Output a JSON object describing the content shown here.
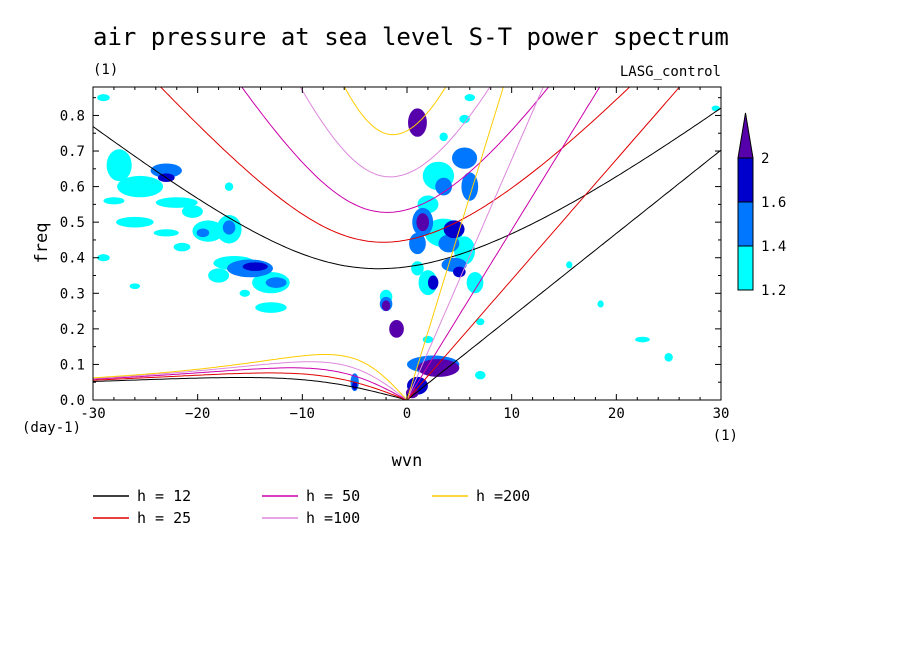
{
  "title": "air pressure at sea level S-T power spectrum",
  "subtitle_unit": "(1)",
  "experiment": "LASG_control",
  "chart_data": {
    "type": "heatmap",
    "xlabel": "wvn",
    "ylabel": "freq",
    "x_unit": "(1)",
    "y_unit": "(day-1)",
    "xlim": [
      -30,
      30
    ],
    "ylim": [
      0,
      0.88
    ],
    "x_ticks": [
      -30,
      -20,
      -10,
      0,
      10,
      20,
      30
    ],
    "x_tick_labels": [
      "-30",
      "−20",
      "−10",
      "0",
      "10",
      "20",
      "30"
    ],
    "y_ticks": [
      0,
      0.1,
      0.2,
      0.3,
      0.4,
      0.5,
      0.6,
      0.7,
      0.8
    ],
    "y_tick_labels": [
      "0.0",
      "0.1",
      "0.2",
      "0.3",
      "0.4",
      "0.5",
      "0.6",
      "0.7",
      "0.8"
    ],
    "colorbar": {
      "levels": [
        1.2,
        1.4,
        1.6,
        2
      ],
      "level_labels": [
        "1.2",
        "1.4",
        "1.6",
        "2"
      ],
      "colors": [
        "#00ffff",
        "#0077ff",
        "#0000cc",
        "#5500aa"
      ]
    },
    "dispersion_curves": [
      {
        "name": "h = 12",
        "h": 12,
        "color": "#000000"
      },
      {
        "name": "h = 25",
        "h": 25,
        "color": "#e00000"
      },
      {
        "name": "h = 50",
        "h": 50,
        "color": "#cc00aa"
      },
      {
        "name": "h =100",
        "h": 100,
        "color": "#dd88dd"
      },
      {
        "name": "h =200",
        "h": 200,
        "color": "#ffcc00"
      }
    ],
    "blobs": [
      {
        "x": -29,
        "y": 0.85,
        "rx": 0.6,
        "ry": 0.01,
        "level": 0
      },
      {
        "x": -27.5,
        "y": 0.66,
        "rx": 1.2,
        "ry": 0.045,
        "level": 0
      },
      {
        "x": -25.5,
        "y": 0.6,
        "rx": 2.2,
        "ry": 0.03,
        "level": 0
      },
      {
        "x": -23,
        "y": 0.645,
        "rx": 1.5,
        "ry": 0.02,
        "level": 1
      },
      {
        "x": -23,
        "y": 0.625,
        "rx": 0.8,
        "ry": 0.012,
        "level": 2
      },
      {
        "x": -22,
        "y": 0.555,
        "rx": 2.0,
        "ry": 0.015,
        "level": 0
      },
      {
        "x": -28,
        "y": 0.56,
        "rx": 1.0,
        "ry": 0.01,
        "level": 0
      },
      {
        "x": -26,
        "y": 0.5,
        "rx": 1.8,
        "ry": 0.015,
        "level": 0
      },
      {
        "x": -23,
        "y": 0.47,
        "rx": 1.2,
        "ry": 0.01,
        "level": 0
      },
      {
        "x": -20.5,
        "y": 0.53,
        "rx": 1.0,
        "ry": 0.018,
        "level": 0
      },
      {
        "x": -19,
        "y": 0.475,
        "rx": 1.5,
        "ry": 0.03,
        "level": 0
      },
      {
        "x": -19.5,
        "y": 0.47,
        "rx": 0.6,
        "ry": 0.012,
        "level": 1
      },
      {
        "x": -17,
        "y": 0.48,
        "rx": 1.2,
        "ry": 0.04,
        "level": 0
      },
      {
        "x": -17,
        "y": 0.485,
        "rx": 0.6,
        "ry": 0.02,
        "level": 1
      },
      {
        "x": -21.5,
        "y": 0.43,
        "rx": 0.8,
        "ry": 0.012,
        "level": 0
      },
      {
        "x": -29,
        "y": 0.4,
        "rx": 0.6,
        "ry": 0.01,
        "level": 0
      },
      {
        "x": -16.5,
        "y": 0.385,
        "rx": 2.0,
        "ry": 0.02,
        "level": 0
      },
      {
        "x": -15,
        "y": 0.37,
        "rx": 2.2,
        "ry": 0.025,
        "level": 1
      },
      {
        "x": -14.5,
        "y": 0.375,
        "rx": 1.2,
        "ry": 0.012,
        "level": 2
      },
      {
        "x": -13,
        "y": 0.33,
        "rx": 1.8,
        "ry": 0.03,
        "level": 0
      },
      {
        "x": -12.5,
        "y": 0.33,
        "rx": 1.0,
        "ry": 0.015,
        "level": 1
      },
      {
        "x": -18,
        "y": 0.35,
        "rx": 1.0,
        "ry": 0.02,
        "level": 0
      },
      {
        "x": -15.5,
        "y": 0.3,
        "rx": 0.5,
        "ry": 0.01,
        "level": 0
      },
      {
        "x": -13,
        "y": 0.26,
        "rx": 1.5,
        "ry": 0.015,
        "level": 0
      },
      {
        "x": -26,
        "y": 0.32,
        "rx": 0.5,
        "ry": 0.008,
        "level": 0
      },
      {
        "x": -5,
        "y": 0.05,
        "rx": 0.4,
        "ry": 0.025,
        "level": 1
      },
      {
        "x": -5,
        "y": 0.04,
        "rx": 0.25,
        "ry": 0.012,
        "level": 2
      },
      {
        "x": 1.0,
        "y": 0.78,
        "rx": 0.9,
        "ry": 0.04,
        "level": 3
      },
      {
        "x": 3.5,
        "y": 0.74,
        "rx": 0.4,
        "ry": 0.012,
        "level": 0
      },
      {
        "x": 5.5,
        "y": 0.79,
        "rx": 0.5,
        "ry": 0.012,
        "level": 0
      },
      {
        "x": 6.0,
        "y": 0.85,
        "rx": 0.5,
        "ry": 0.01,
        "level": 0
      },
      {
        "x": 5.5,
        "y": 0.68,
        "rx": 1.2,
        "ry": 0.03,
        "level": 1
      },
      {
        "x": 3.0,
        "y": 0.63,
        "rx": 1.5,
        "ry": 0.04,
        "level": 0
      },
      {
        "x": 3.5,
        "y": 0.6,
        "rx": 0.8,
        "ry": 0.025,
        "level": 1
      },
      {
        "x": 6.0,
        "y": 0.6,
        "rx": 0.8,
        "ry": 0.04,
        "level": 1
      },
      {
        "x": 2.0,
        "y": 0.55,
        "rx": 1.0,
        "ry": 0.025,
        "level": 0
      },
      {
        "x": 1.5,
        "y": 0.5,
        "rx": 1.0,
        "ry": 0.04,
        "level": 1
      },
      {
        "x": 1.5,
        "y": 0.5,
        "rx": 0.6,
        "ry": 0.025,
        "level": 3
      },
      {
        "x": 3.5,
        "y": 0.47,
        "rx": 1.8,
        "ry": 0.04,
        "level": 0
      },
      {
        "x": 4.5,
        "y": 0.48,
        "rx": 1.0,
        "ry": 0.025,
        "level": 2
      },
      {
        "x": 4.0,
        "y": 0.44,
        "rx": 1.0,
        "ry": 0.025,
        "level": 1
      },
      {
        "x": 5.5,
        "y": 0.42,
        "rx": 1.0,
        "ry": 0.04,
        "level": 0
      },
      {
        "x": 1.0,
        "y": 0.44,
        "rx": 0.8,
        "ry": 0.03,
        "level": 1
      },
      {
        "x": 4.5,
        "y": 0.38,
        "rx": 1.2,
        "ry": 0.02,
        "level": 1
      },
      {
        "x": 5.0,
        "y": 0.36,
        "rx": 0.6,
        "ry": 0.015,
        "level": 2
      },
      {
        "x": 1.0,
        "y": 0.37,
        "rx": 0.6,
        "ry": 0.02,
        "level": 0
      },
      {
        "x": 2.0,
        "y": 0.33,
        "rx": 0.9,
        "ry": 0.035,
        "level": 0
      },
      {
        "x": 2.5,
        "y": 0.33,
        "rx": 0.5,
        "ry": 0.02,
        "level": 2
      },
      {
        "x": 6.5,
        "y": 0.33,
        "rx": 0.8,
        "ry": 0.03,
        "level": 0
      },
      {
        "x": -2.0,
        "y": 0.29,
        "rx": 0.6,
        "ry": 0.02,
        "level": 0
      },
      {
        "x": -2.0,
        "y": 0.27,
        "rx": 0.6,
        "ry": 0.02,
        "level": 1
      },
      {
        "x": -2.0,
        "y": 0.265,
        "rx": 0.4,
        "ry": 0.015,
        "level": 3
      },
      {
        "x": -1.0,
        "y": 0.2,
        "rx": 0.7,
        "ry": 0.025,
        "level": 3
      },
      {
        "x": 2.0,
        "y": 0.17,
        "rx": 0.5,
        "ry": 0.01,
        "level": 0
      },
      {
        "x": 7.0,
        "y": 0.22,
        "rx": 0.4,
        "ry": 0.01,
        "level": 0
      },
      {
        "x": 2.5,
        "y": 0.1,
        "rx": 2.5,
        "ry": 0.025,
        "level": 1
      },
      {
        "x": 3.0,
        "y": 0.09,
        "rx": 2.0,
        "ry": 0.025,
        "level": 3
      },
      {
        "x": 1.0,
        "y": 0.04,
        "rx": 1.0,
        "ry": 0.025,
        "level": 2
      },
      {
        "x": 0.5,
        "y": 0.02,
        "rx": 0.6,
        "ry": 0.015,
        "level": 3
      },
      {
        "x": 7.0,
        "y": 0.07,
        "rx": 0.5,
        "ry": 0.012,
        "level": 0
      },
      {
        "x": 15.5,
        "y": 0.38,
        "rx": 0.3,
        "ry": 0.01,
        "level": 0
      },
      {
        "x": 18.5,
        "y": 0.27,
        "rx": 0.3,
        "ry": 0.01,
        "level": 0
      },
      {
        "x": 22.5,
        "y": 0.17,
        "rx": 0.7,
        "ry": 0.008,
        "level": 0
      },
      {
        "x": 25,
        "y": 0.12,
        "rx": 0.4,
        "ry": 0.012,
        "level": 0
      },
      {
        "x": 29.5,
        "y": 0.82,
        "rx": 0.4,
        "ry": 0.008,
        "level": 0
      },
      {
        "x": -17,
        "y": 0.6,
        "rx": 0.4,
        "ry": 0.012,
        "level": 0
      }
    ]
  }
}
